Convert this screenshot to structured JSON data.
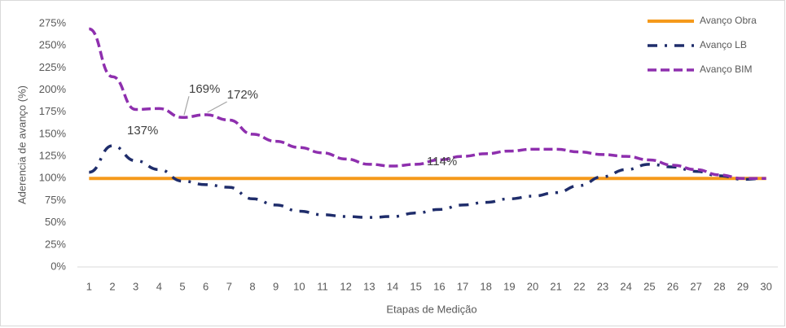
{
  "chart_data": {
    "type": "line",
    "x_label": "Etapas de Medição",
    "y_label": "Aderencia de avanço (%)",
    "categories": [
      "1",
      "2",
      "3",
      "4",
      "5",
      "6",
      "7",
      "8",
      "9",
      "10",
      "11",
      "12",
      "13",
      "14",
      "15",
      "16",
      "17",
      "18",
      "19",
      "20",
      "21",
      "22",
      "23",
      "24",
      "25",
      "26",
      "27",
      "28",
      "29",
      "30"
    ],
    "series": [
      {
        "name": "Avanço Obra",
        "color": "#f59a1b",
        "dash": "solid",
        "values": [
          100,
          100,
          100,
          100,
          100,
          100,
          100,
          100,
          100,
          100,
          100,
          100,
          100,
          100,
          100,
          100,
          100,
          100,
          100,
          100,
          100,
          100,
          100,
          100,
          100,
          100,
          100,
          100,
          100,
          100
        ]
      },
      {
        "name": "Avanço LB",
        "color": "#1f2d6b",
        "dash": "dashdot",
        "values": [
          107,
          137,
          120,
          110,
          97,
          93,
          90,
          77,
          70,
          63,
          59,
          57,
          56,
          57,
          61,
          65,
          70,
          73,
          77,
          80,
          84,
          92,
          102,
          110,
          116,
          113,
          108,
          103,
          99,
          100
        ],
        "value_labels": [
          null,
          "137%",
          null,
          null,
          null,
          null,
          null,
          null,
          null,
          null,
          null,
          null,
          null,
          null,
          null,
          null,
          null,
          null,
          null,
          null,
          null,
          null,
          null,
          null,
          null,
          null,
          null,
          null,
          null,
          null
        ]
      },
      {
        "name": "Avanço BIM",
        "color": "#8e2fae",
        "dash": "dashed",
        "values": [
          269,
          215,
          178,
          179,
          169,
          172,
          166,
          150,
          142,
          135,
          129,
          122,
          116,
          114,
          116,
          121,
          125,
          128,
          131,
          133,
          133,
          130,
          127,
          125,
          121,
          115,
          110,
          104,
          100,
          100
        ],
        "value_labels": [
          null,
          null,
          null,
          null,
          "169%",
          "172%",
          null,
          null,
          null,
          null,
          null,
          null,
          null,
          "114%",
          null,
          null,
          null,
          null,
          null,
          null,
          null,
          null,
          null,
          null,
          null,
          null,
          null,
          null,
          null,
          null
        ]
      }
    ],
    "ylim": [
      0,
      275
    ],
    "yticks": [
      {
        "value": 0,
        "label": "0%"
      },
      {
        "value": 25,
        "label": "25%"
      },
      {
        "value": 50,
        "label": "50%"
      },
      {
        "value": 75,
        "label": "75%"
      },
      {
        "value": 100,
        "label": "100%"
      },
      {
        "value": 125,
        "label": "125%"
      },
      {
        "value": 150,
        "label": "150%"
      },
      {
        "value": 175,
        "label": "175%"
      },
      {
        "value": 200,
        "label": "200%"
      },
      {
        "value": 225,
        "label": "225%"
      },
      {
        "value": 250,
        "label": "250%"
      },
      {
        "value": 275,
        "label": "275%"
      }
    ],
    "grid": false,
    "legend": "top-right"
  }
}
